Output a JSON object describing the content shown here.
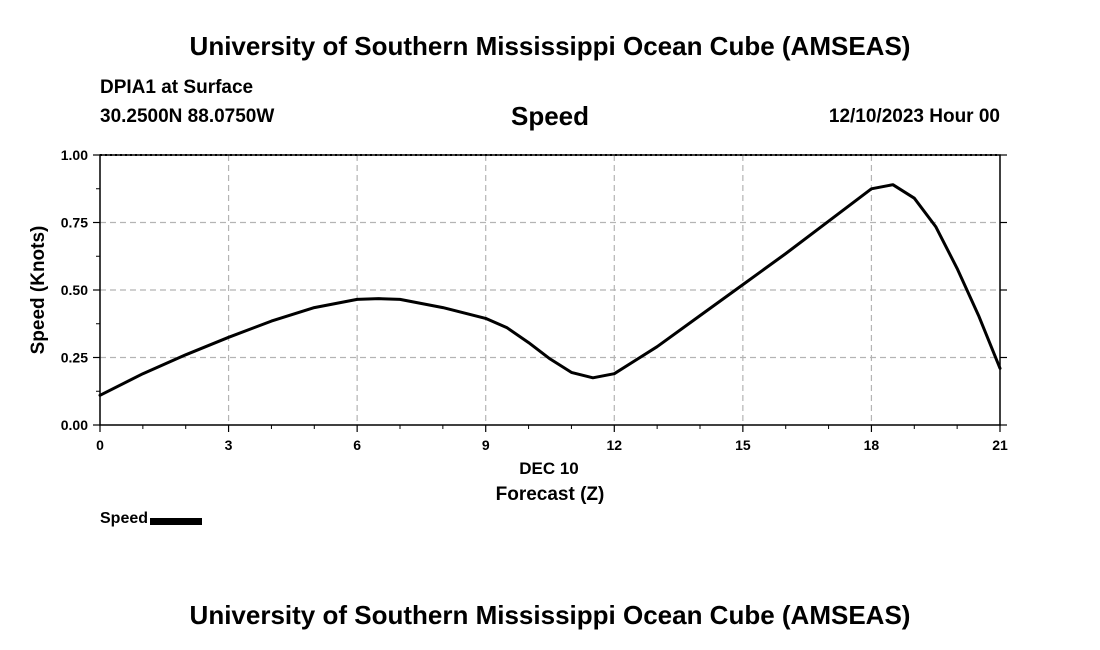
{
  "header": {
    "title": "University of Southern Mississippi Ocean Cube (AMSEAS)",
    "station": "DPIA1 at Surface",
    "coords": "30.2500N  88.0750W",
    "plot_title": "Speed",
    "datetime": "12/10/2023 Hour 00"
  },
  "footer": {
    "title": "University of Southern Mississippi Ocean Cube (AMSEAS)"
  },
  "legend": {
    "label": "Speed"
  },
  "colors": {
    "line": "#000000",
    "grid": "#b4b4b4"
  },
  "chart_data": {
    "type": "line",
    "title": "Speed",
    "xlabel": "Forecast (Z)",
    "xlabel_date": "DEC 10",
    "ylabel": "Speed (Knots)",
    "xlim": [
      0,
      21
    ],
    "ylim": [
      0,
      1
    ],
    "xticks": [
      0,
      3,
      6,
      9,
      12,
      15,
      18,
      21
    ],
    "xtick_labels": [
      "0",
      "3",
      "6",
      "9",
      "12",
      "15",
      "18",
      "21"
    ],
    "yticks": [
      0,
      0.25,
      0.5,
      0.75,
      1.0
    ],
    "ytick_labels": [
      "0.00",
      "0.25",
      "0.50",
      "0.75",
      "1.00"
    ],
    "grid": true,
    "series": [
      {
        "name": "Speed",
        "x": [
          0,
          1,
          2,
          3,
          4,
          5,
          6,
          6.5,
          7,
          8,
          9,
          9.5,
          10,
          10.5,
          11,
          11.5,
          12,
          13,
          14,
          15,
          16,
          17,
          18,
          18.5,
          19,
          19.5,
          20,
          20.5,
          21
        ],
        "y": [
          0.11,
          0.19,
          0.26,
          0.325,
          0.385,
          0.435,
          0.465,
          0.468,
          0.465,
          0.435,
          0.395,
          0.36,
          0.305,
          0.245,
          0.195,
          0.175,
          0.19,
          0.29,
          0.405,
          0.52,
          0.635,
          0.755,
          0.875,
          0.89,
          0.84,
          0.735,
          0.58,
          0.405,
          0.21
        ]
      }
    ]
  }
}
